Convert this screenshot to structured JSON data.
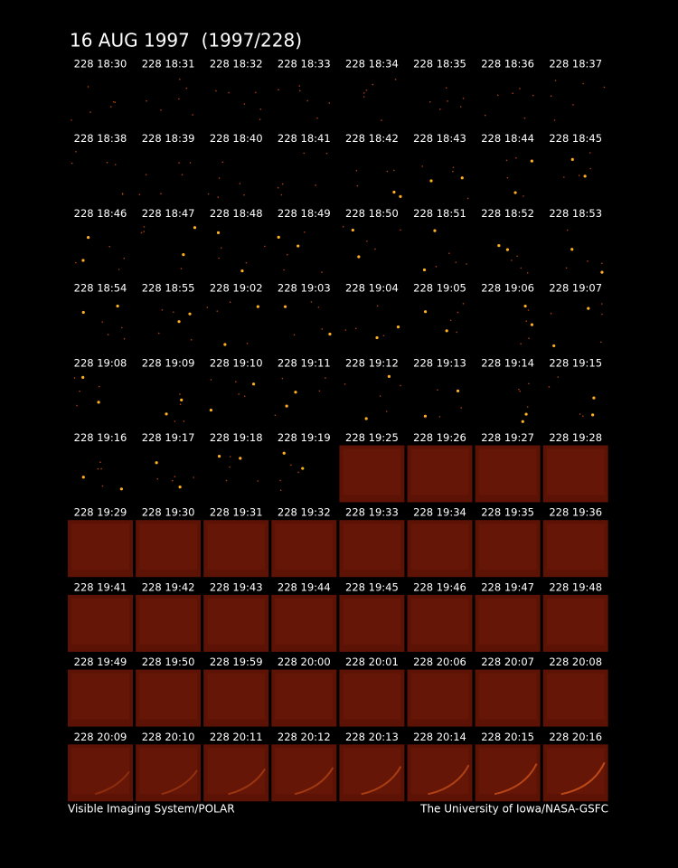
{
  "header": {
    "title": "16 AUG 1997  (1997/228)"
  },
  "frames": [
    "228 18:30",
    "228 18:31",
    "228 18:32",
    "228 18:33",
    "228 18:34",
    "228 18:35",
    "228 18:36",
    "228 18:37",
    "228 18:38",
    "228 18:39",
    "228 18:40",
    "228 18:41",
    "228 18:42",
    "228 18:43",
    "228 18:44",
    "228 18:45",
    "228 18:46",
    "228 18:47",
    "228 18:48",
    "228 18:49",
    "228 18:50",
    "228 18:51",
    "228 18:52",
    "228 18:53",
    "228 18:54",
    "228 18:55",
    "228 19:02",
    "228 19:03",
    "228 19:04",
    "228 19:05",
    "228 19:06",
    "228 19:07",
    "228 19:08",
    "228 19:09",
    "228 19:10",
    "228 19:11",
    "228 19:12",
    "228 19:13",
    "228 19:14",
    "228 19:15",
    "228 19:16",
    "228 19:17",
    "228 19:18",
    "228 19:19",
    "228 19:25",
    "228 19:26",
    "228 19:27",
    "228 19:28",
    "228 19:29",
    "228 19:30",
    "228 19:31",
    "228 19:32",
    "228 19:33",
    "228 19:34",
    "228 19:35",
    "228 19:36",
    "228 19:41",
    "228 19:42",
    "228 19:43",
    "228 19:44",
    "228 19:45",
    "228 19:46",
    "228 19:47",
    "228 19:48",
    "228 19:49",
    "228 19:50",
    "228 19:59",
    "228 20:00",
    "228 20:01",
    "228 20:06",
    "228 20:07",
    "228 20:08",
    "228 20:09",
    "228 20:10",
    "228 20:11",
    "228 20:12",
    "228 20:13",
    "228 20:14",
    "228 20:15",
    "228 20:16"
  ],
  "footer": {
    "left": "Visible Imaging System/POLAR",
    "right": "The University of Iowa/NASA-GSFC"
  }
}
